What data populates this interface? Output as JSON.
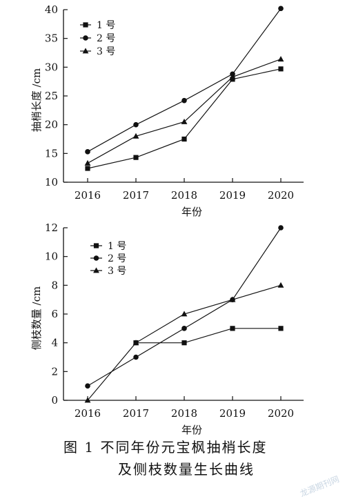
{
  "figure": {
    "caption_line1": "图 1    不同年份元宝枫抽梢长度",
    "caption_line2": "及侧枝数量生长曲线",
    "watermark": "龙源期刊网"
  },
  "chart_data": [
    {
      "type": "line",
      "title": "",
      "xlabel": "年份",
      "ylabel": "抽梢长度 /cm",
      "x": [
        "2016",
        "2017",
        "2018",
        "2019",
        "2020"
      ],
      "ylim": [
        10,
        40
      ],
      "yticks": [
        10,
        15,
        20,
        25,
        30,
        35,
        40
      ],
      "grid": false,
      "legend": "top-left",
      "series": [
        {
          "name": "1 号",
          "marker": "square",
          "values": [
            12.4,
            14.3,
            17.5,
            27.9,
            29.7
          ]
        },
        {
          "name": "2 号",
          "marker": "circle",
          "values": [
            15.3,
            20.0,
            24.2,
            28.8,
            40.2
          ]
        },
        {
          "name": "3 号",
          "marker": "triangle",
          "values": [
            13.3,
            18.0,
            20.5,
            28.3,
            31.4
          ]
        }
      ]
    },
    {
      "type": "line",
      "title": "",
      "xlabel": "年份",
      "ylabel": "侧枝数量 /cm",
      "x": [
        "2016",
        "2017",
        "2018",
        "2019",
        "2020"
      ],
      "ylim": [
        0,
        12
      ],
      "yticks": [
        0,
        2,
        4,
        6,
        8,
        10,
        12
      ],
      "grid": false,
      "legend": "top-left",
      "series": [
        {
          "name": "1 号",
          "marker": "square",
          "values": [
            null,
            4,
            4,
            5,
            5
          ]
        },
        {
          "name": "2 号",
          "marker": "circle",
          "values": [
            1,
            3,
            5,
            7,
            12
          ]
        },
        {
          "name": "3 号",
          "marker": "triangle",
          "values": [
            0,
            4,
            6,
            7,
            8
          ]
        }
      ]
    }
  ]
}
